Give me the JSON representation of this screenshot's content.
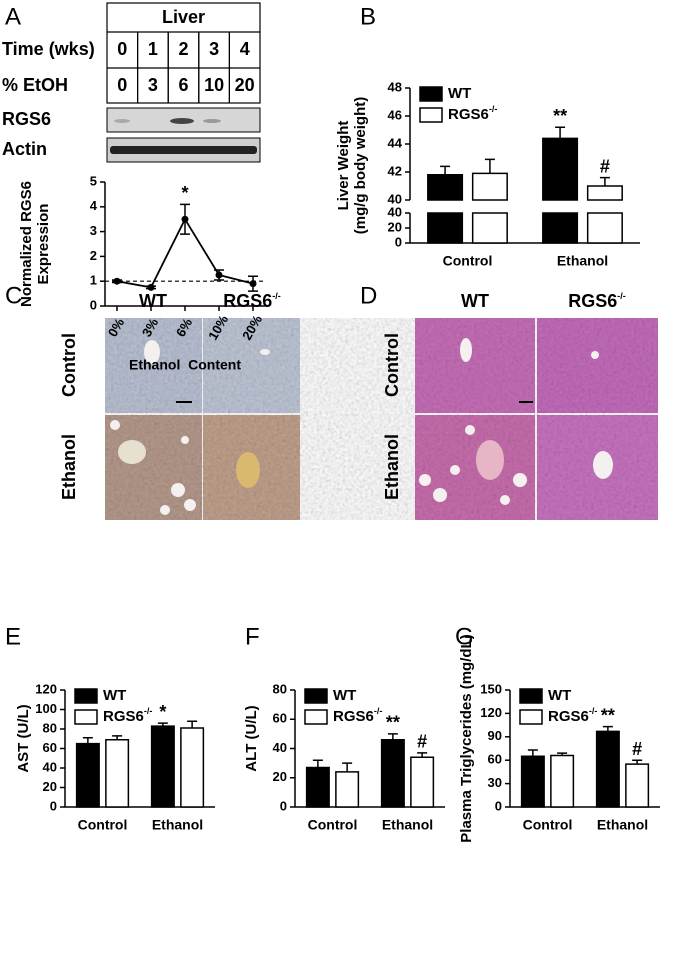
{
  "panel_letters": [
    "A",
    "B",
    "C",
    "D",
    "E",
    "F",
    "G"
  ],
  "blot": {
    "title": "Liver",
    "rows": [
      {
        "label": "Time (wks)",
        "cells": [
          0,
          1,
          2,
          3,
          4
        ]
      },
      {
        "label": "% EtOH",
        "cells": [
          0,
          3,
          6,
          10,
          20
        ]
      }
    ],
    "bands": [
      "RGS6",
      "Actin"
    ]
  },
  "histology": [
    {
      "columns": [
        "WT",
        "RGS6-/-"
      ],
      "rows": [
        "Control",
        "Ethanol"
      ]
    },
    {
      "columns": [
        "WT",
        "RGS6-/-"
      ],
      "rows": [
        "Control",
        "Ethanol"
      ]
    }
  ],
  "chart_data": [
    {
      "type": "line",
      "y_label": [
        "Normalized RGS6",
        "Expression"
      ],
      "x_label": "Ethanol  Content",
      "categories": [
        "0%",
        "3%",
        "6%",
        "10%",
        "20%"
      ],
      "values": [
        1.0,
        0.75,
        3.5,
        1.25,
        0.9
      ],
      "errors": [
        0.05,
        0.05,
        0.6,
        0.2,
        0.3
      ],
      "point_labels": [
        null,
        null,
        "*",
        null,
        null
      ],
      "reference_line": 1,
      "color": "#000000",
      "ylim": [
        0,
        5
      ],
      "yticks": [
        0,
        1,
        2,
        3,
        4,
        5
      ]
    },
    {
      "type": "bar",
      "broken_axis": true,
      "y_label": [
        "Liver Weight",
        "(mg/g body weight)"
      ],
      "categories": [
        "Control",
        "Ethanol"
      ],
      "series": [
        {
          "name": "WT",
          "color": "#000000",
          "values": [
            41.8,
            44.4
          ],
          "errors": [
            0.6,
            0.8
          ],
          "significance": [
            null,
            "**"
          ]
        },
        {
          "name": "RGS6-/-",
          "color": "#ffffff",
          "values": [
            41.9,
            41.0
          ],
          "errors": [
            1.0,
            0.6
          ],
          "significance": [
            null,
            "#"
          ]
        }
      ],
      "ylim": [
        40,
        48
      ],
      "yticks": [
        40,
        42,
        44,
        46,
        48
      ],
      "lower_ylim": [
        0,
        40
      ],
      "lower_yticks": [
        0,
        20,
        40
      ]
    },
    {
      "type": "bar",
      "y_label": [
        "AST (U/L)"
      ],
      "categories": [
        "Control",
        "Ethanol"
      ],
      "series": [
        {
          "name": "WT",
          "color": "#000000",
          "values": [
            65,
            83
          ],
          "errors": [
            6,
            3
          ],
          "significance": [
            null,
            "*"
          ]
        },
        {
          "name": "RGS6-/-",
          "color": "#ffffff",
          "values": [
            69,
            81
          ],
          "errors": [
            4,
            7
          ],
          "significance": [
            null,
            null
          ]
        }
      ],
      "ylim": [
        0,
        120
      ],
      "yticks": [
        0,
        20,
        40,
        60,
        80,
        100,
        120
      ]
    },
    {
      "type": "bar",
      "y_label": [
        "ALT (U/L)"
      ],
      "categories": [
        "Control",
        "Ethanol"
      ],
      "series": [
        {
          "name": "WT",
          "color": "#000000",
          "values": [
            27,
            46
          ],
          "errors": [
            5,
            4
          ],
          "significance": [
            null,
            "**"
          ]
        },
        {
          "name": "RGS6-/-",
          "color": "#ffffff",
          "values": [
            24,
            34
          ],
          "errors": [
            6,
            3
          ],
          "significance": [
            null,
            "#"
          ]
        }
      ],
      "ylim": [
        0,
        80
      ],
      "yticks": [
        0,
        20,
        40,
        60,
        80
      ]
    },
    {
      "type": "bar",
      "y_label": [
        "Plasma Triglycerides (mg/dL)"
      ],
      "categories": [
        "Control",
        "Ethanol"
      ],
      "series": [
        {
          "name": "WT",
          "color": "#000000",
          "values": [
            65,
            97
          ],
          "errors": [
            8,
            6
          ],
          "significance": [
            null,
            "**"
          ]
        },
        {
          "name": "RGS6-/-",
          "color": "#ffffff",
          "values": [
            66,
            55
          ],
          "errors": [
            3,
            5
          ],
          "significance": [
            null,
            "#"
          ]
        }
      ],
      "ylim": [
        0,
        150
      ],
      "yticks": [
        0,
        30,
        60,
        90,
        120,
        150
      ]
    }
  ]
}
